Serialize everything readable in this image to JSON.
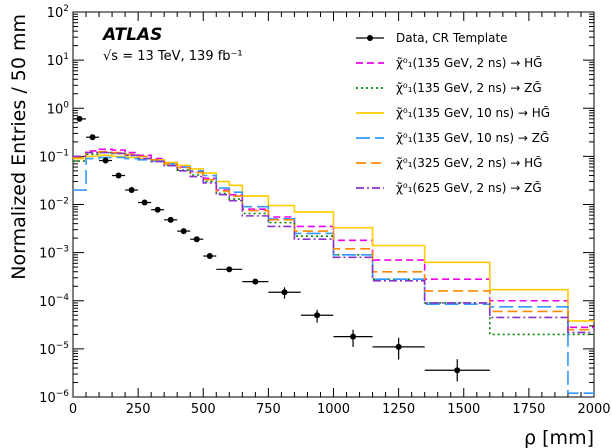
{
  "experiment_label": "ATLAS",
  "energy_label": "√s = 13 TeV, 139 fb⁻¹",
  "chart_data": {
    "type": "line",
    "xlabel": "ρ [mm]",
    "ylabel": "Normalized Entries / 50 mm",
    "xlim": [
      0,
      2000
    ],
    "ylim": [
      1e-06,
      100
    ],
    "yscale": "log",
    "legend_position": "top-right",
    "x_ticks": [
      "0",
      "250",
      "500",
      "750",
      "1000",
      "1250",
      "1500",
      "1750",
      "2000"
    ],
    "y_ticks": [
      {
        "base": "10",
        "exp": "−6",
        "value": 1e-06
      },
      {
        "base": "10",
        "exp": "−5",
        "value": 1e-05
      },
      {
        "base": "10",
        "exp": "−4",
        "value": 0.0001
      },
      {
        "base": "10",
        "exp": "−3",
        "value": 0.001
      },
      {
        "base": "10",
        "exp": "−2",
        "value": 0.01
      },
      {
        "base": "10",
        "exp": "−1",
        "value": 0.1
      },
      {
        "base": "10",
        "exp": "0",
        "value": 1
      },
      {
        "base": "10",
        "exp": "1",
        "value": 10
      },
      {
        "base": "10",
        "exp": "2",
        "value": 100
      }
    ],
    "bin_edges": [
      0,
      50,
      100,
      150,
      200,
      250,
      300,
      350,
      400,
      450,
      500,
      550,
      600,
      650,
      750,
      850,
      1000,
      1150,
      1350,
      1600,
      1900,
      2000
    ],
    "data_series": {
      "name": "Data, CR Template",
      "points": [
        {
          "x": 25,
          "y": 0.6,
          "xerr": 25,
          "yerr": [
            0.05,
            0.05
          ]
        },
        {
          "x": 75,
          "y": 0.25,
          "xerr": 25,
          "yerr": [
            0.02,
            0.02
          ]
        },
        {
          "x": 125,
          "y": 0.082,
          "xerr": 25,
          "yerr": [
            0.006,
            0.006
          ]
        },
        {
          "x": 175,
          "y": 0.04,
          "xerr": 25,
          "yerr": [
            0.003,
            0.003
          ]
        },
        {
          "x": 225,
          "y": 0.02,
          "xerr": 25,
          "yerr": [
            0.0015,
            0.0015
          ]
        },
        {
          "x": 275,
          "y": 0.011,
          "xerr": 25,
          "yerr": [
            0.0008,
            0.0008
          ]
        },
        {
          "x": 325,
          "y": 0.0078,
          "xerr": 25,
          "yerr": [
            0.0006,
            0.0006
          ]
        },
        {
          "x": 375,
          "y": 0.0048,
          "xerr": 25,
          "yerr": [
            0.0004,
            0.0004
          ]
        },
        {
          "x": 425,
          "y": 0.0028,
          "xerr": 25,
          "yerr": [
            0.0002,
            0.0002
          ]
        },
        {
          "x": 475,
          "y": 0.0019,
          "xerr": 25,
          "yerr": [
            0.00015,
            0.00015
          ]
        },
        {
          "x": 525,
          "y": 0.00085,
          "xerr": 25,
          "yerr": [
            0.0001,
            0.0001
          ]
        },
        {
          "x": 600,
          "y": 0.00045,
          "xerr": 50,
          "yerr": [
            5e-05,
            5e-05
          ]
        },
        {
          "x": 700,
          "y": 0.00025,
          "xerr": 50,
          "yerr": [
            3e-05,
            3e-05
          ]
        },
        {
          "x": 812,
          "y": 0.00015,
          "xerr": 62,
          "yerr": [
            4e-05,
            4e-05
          ]
        },
        {
          "x": 937,
          "y": 5e-05,
          "xerr": 62,
          "yerr": [
            1.5e-05,
            1.5e-05
          ]
        },
        {
          "x": 1075,
          "y": 1.8e-05,
          "xerr": 75,
          "yerr": [
            7e-06,
            7e-06
          ]
        },
        {
          "x": 1250,
          "y": 1.1e-05,
          "xerr": 100,
          "yerr": [
            5e-06,
            6e-06
          ]
        },
        {
          "x": 1475,
          "y": 3.6e-06,
          "xerr": 125,
          "yerr": [
            1.5e-06,
            2.5e-06
          ]
        }
      ]
    },
    "series": [
      {
        "name": "χ̃⁰₁(135 GeV, 2 ns) → HG̃",
        "color": "#ee00ee",
        "dash": "7,4",
        "values": [
          0.1,
          0.13,
          0.14,
          0.135,
          0.12,
          0.105,
          0.09,
          0.075,
          0.06,
          0.048,
          0.035,
          0.02,
          0.016,
          0.008,
          0.0055,
          0.0035,
          0.0018,
          0.0007,
          0.00028,
          0.0001,
          2.8e-05
        ]
      },
      {
        "name": "χ̃⁰₁(135 GeV, 2 ns) → ZG̃",
        "color": "#008800",
        "dash": "2,3",
        "values": [
          0.08,
          0.11,
          0.12,
          0.115,
          0.105,
          0.09,
          0.078,
          0.065,
          0.052,
          0.041,
          0.03,
          0.017,
          0.013,
          0.0065,
          0.0042,
          0.0022,
          0.0009,
          0.00028,
          9e-05,
          2e-05,
          2e-05
        ]
      },
      {
        "name": "χ̃⁰₁(135 GeV, 10 ns) → HG̃",
        "color": "#ffcc00",
        "dash": "",
        "values": [
          0.09,
          0.1,
          0.105,
          0.1,
          0.095,
          0.09,
          0.085,
          0.075,
          0.065,
          0.055,
          0.045,
          0.03,
          0.025,
          0.015,
          0.0095,
          0.007,
          0.0033,
          0.0014,
          0.00063,
          0.00017,
          3.8e-05
        ]
      },
      {
        "name": "χ̃⁰₁(135 GeV, 10 ns) → ZG̃",
        "color": "#3399ff",
        "dash": "14,5",
        "values": [
          0.02,
          0.09,
          0.095,
          0.095,
          0.09,
          0.085,
          0.08,
          0.07,
          0.06,
          0.05,
          0.04,
          0.022,
          0.018,
          0.009,
          0.005,
          0.0025,
          0.0009,
          0.00028,
          8.5e-05,
          7.5e-05,
          1.2e-06
        ]
      },
      {
        "name": "χ̃⁰₁(325 GeV, 2 ns) → HG̃",
        "color": "#ff8800",
        "dash": "10,5",
        "values": [
          0.095,
          0.12,
          0.125,
          0.12,
          0.11,
          0.1,
          0.085,
          0.07,
          0.058,
          0.046,
          0.033,
          0.019,
          0.015,
          0.0075,
          0.0048,
          0.0028,
          0.0012,
          0.0004,
          0.00016,
          6e-05,
          2.5e-05
        ]
      },
      {
        "name": "χ̃⁰₁(625 GeV, 2 ns) → ZG̃",
        "color": "#8833cc",
        "dash": "8,3,2,3",
        "values": [
          0.1,
          0.12,
          0.12,
          0.115,
          0.105,
          0.09,
          0.078,
          0.064,
          0.05,
          0.038,
          0.028,
          0.016,
          0.012,
          0.0058,
          0.0035,
          0.0019,
          0.0008,
          0.00026,
          9e-05,
          4.5e-05,
          2.2e-05
        ]
      }
    ]
  }
}
